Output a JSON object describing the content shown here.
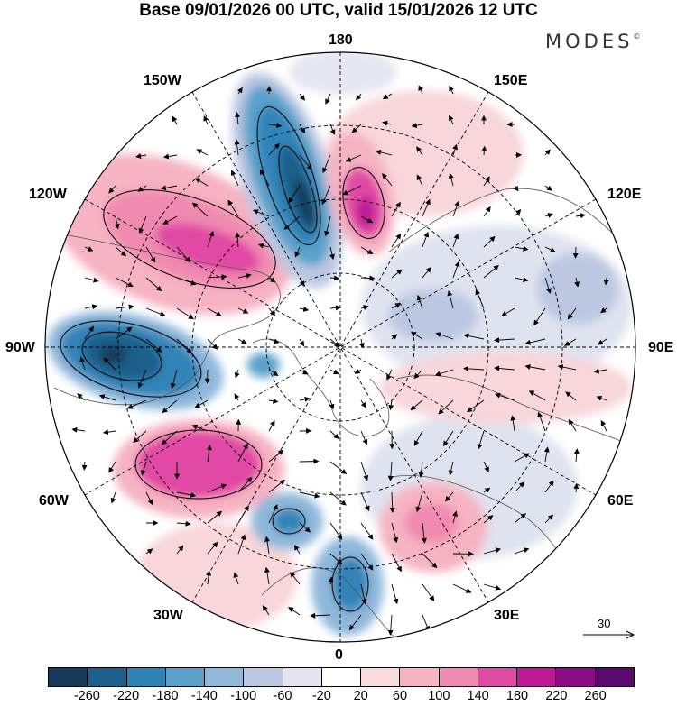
{
  "title": "Base 09/01/2026 00 UTC, valid 15/01/2026 12 UTC",
  "logo": "MODES",
  "logo_mark": "©",
  "longitude_labels": {
    "top": "180",
    "bottom": "0",
    "left": "90W",
    "right": "90E",
    "upper_left_1": "150W",
    "upper_left_2": "120W",
    "upper_right_1": "150E",
    "upper_right_2": "120E",
    "lower_left_1": "60W",
    "lower_left_2": "30W",
    "lower_right_1": "60E",
    "lower_right_2": "30E"
  },
  "reference_vector": "30",
  "colorbar": {
    "colors": [
      "#173a5a",
      "#1b5f8a",
      "#3083b7",
      "#5aa1ca",
      "#8fb8db",
      "#bcc8e2",
      "#e4e4f0",
      "#ffffff",
      "#fbdcdc",
      "#f6b3c2",
      "#f08ab0",
      "#e14aa4",
      "#bd1896",
      "#8d0c86",
      "#5a0a6e"
    ],
    "labels": [
      "-260",
      "-220",
      "-180",
      "-140",
      "-100",
      "-60",
      "-20",
      "20",
      "60",
      "100",
      "140",
      "180",
      "220",
      "260"
    ]
  }
}
